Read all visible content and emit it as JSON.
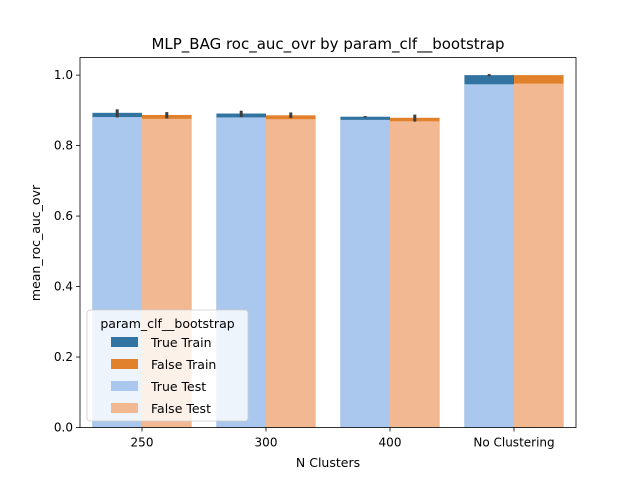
{
  "chart_data": {
    "type": "bar",
    "title": "MLP_BAG roc_auc_ovr by param_clf__bootstrap",
    "xlabel": "N Clusters",
    "ylabel": "mean_roc_auc_ovr",
    "categories": [
      "250",
      "300",
      "400",
      "No Clustering"
    ],
    "ylim": [
      0,
      1.05
    ],
    "yticks": [
      "0.0",
      "0.2",
      "0.4",
      "0.6",
      "0.8",
      "1.0"
    ],
    "ytick_values": [
      0,
      0.2,
      0.4,
      0.6,
      0.8,
      1.0
    ],
    "grid": false,
    "legend": {
      "title": "param_clf__bootstrap",
      "placement": "lower-left",
      "entries": [
        "True Train",
        "False Train",
        "True Test",
        "False Test"
      ]
    },
    "series": [
      {
        "name": "True Train",
        "color": "#3274a1",
        "group": "True",
        "values": [
          0.893,
          0.891,
          0.882,
          1.0
        ],
        "err": [
          [
            0.88,
            0.903
          ],
          [
            0.881,
            0.899
          ],
          [
            0.88,
            0.884
          ],
          [
            0.997,
            1.003
          ]
        ]
      },
      {
        "name": "False Train",
        "color": "#e1812c",
        "group": "False",
        "values": [
          0.887,
          0.886,
          0.879,
          1.0
        ],
        "err": [
          [
            0.877,
            0.895
          ],
          [
            0.878,
            0.894
          ],
          [
            0.868,
            0.888
          ],
          null
        ]
      },
      {
        "name": "True Test",
        "color": "#aac8ee",
        "group": "True",
        "values": [
          0.881,
          0.88,
          0.873,
          0.974
        ]
      },
      {
        "name": "False Test",
        "color": "#f1b892",
        "group": "False",
        "values": [
          0.876,
          0.875,
          0.869,
          0.976
        ]
      }
    ]
  }
}
